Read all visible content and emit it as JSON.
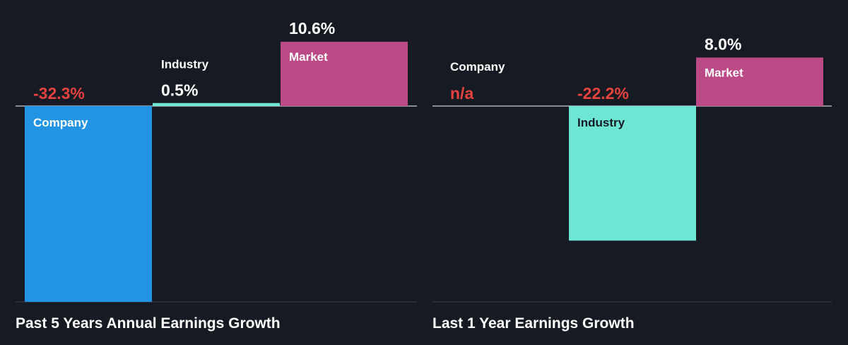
{
  "chart_data": [
    {
      "type": "bar",
      "title": "Past 5 Years Annual Earnings Growth",
      "categories": [
        "Company",
        "Industry",
        "Market"
      ],
      "values": [
        -32.3,
        0.5,
        10.6
      ],
      "value_labels": [
        "-32.3%",
        "0.5%",
        "10.6%"
      ],
      "ylim": [
        -32.3,
        10.6
      ],
      "colors": {
        "Company": "#2394e3",
        "Industry": "#6ee6d4",
        "Market": "#bc4a87",
        "negative_label": "#e8423f",
        "positive_label": "#ffffff"
      }
    },
    {
      "type": "bar",
      "title": "Last 1 Year Earnings Growth",
      "categories": [
        "Company",
        "Industry",
        "Market"
      ],
      "values": [
        null,
        -22.2,
        8.0
      ],
      "value_labels": [
        "n/a",
        "-22.2%",
        "8.0%"
      ],
      "ylim": [
        -32.3,
        10.6
      ],
      "colors": {
        "Company": "#2394e3",
        "Industry": "#6ee6d4",
        "Market": "#bc4a87",
        "negative_label": "#e8423f",
        "positive_label": "#ffffff"
      }
    }
  ]
}
